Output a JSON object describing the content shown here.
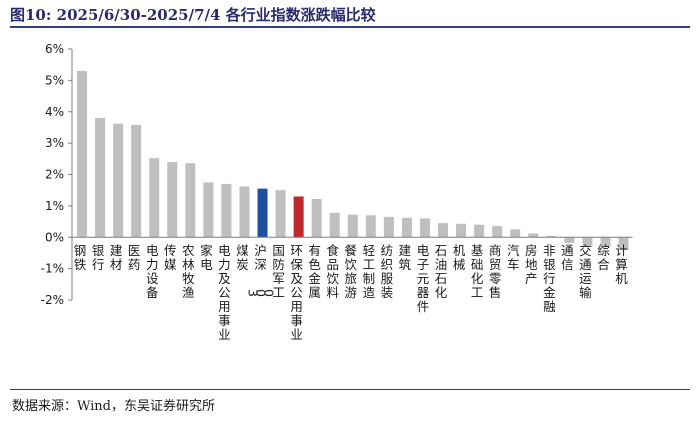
{
  "header": {
    "title": "图10:  2025/6/30-2025/7/4 各行业指数涨跌幅比较"
  },
  "footer": {
    "source": "数据来源：Wind，东吴证券研究所"
  },
  "colors": {
    "default_bar": "#bfbfbf",
    "highlight_blue": "#1f4e9c",
    "highlight_red": "#c0282d",
    "axis": "#7f7f7f"
  },
  "chart_data": {
    "type": "bar",
    "title": "",
    "xlabel": "",
    "ylabel": "",
    "ylim": [
      -0.02,
      0.06
    ],
    "y_ticks": [
      -0.02,
      -0.01,
      0,
      0.01,
      0.02,
      0.03,
      0.04,
      0.05,
      0.06
    ],
    "y_tick_labels": [
      "-2%",
      "-1%",
      "0%",
      "1%",
      "2%",
      "3%",
      "4%",
      "5%",
      "6%"
    ],
    "grid": false,
    "legend": "none",
    "categories": [
      "钢铁",
      "银行",
      "建材",
      "医药",
      "电力设备",
      "传媒",
      "农林牧渔",
      "家电",
      "电力及公用事业",
      "煤炭",
      "沪深300",
      "国防军工",
      "环保及公用事业",
      "有色金属",
      "食品饮料",
      "餐饮旅游",
      "轻工制造",
      "纺织服装",
      "建筑",
      "电子元器件",
      "石油石化",
      "机械",
      "基础化工",
      "商贸零售",
      "汽车",
      "房地产",
      "非银行金融",
      "通信",
      "交通运输",
      "综合",
      "计算机"
    ],
    "values": [
      0.053,
      0.038,
      0.0362,
      0.0358,
      0.0252,
      0.024,
      0.0236,
      0.0175,
      0.017,
      0.0162,
      0.0155,
      0.015,
      0.013,
      0.0122,
      0.0078,
      0.0072,
      0.007,
      0.0065,
      0.0062,
      0.006,
      0.0045,
      0.0043,
      0.004,
      0.0036,
      0.0025,
      0.0012,
      0.0004,
      -0.0018,
      -0.003,
      -0.0032,
      -0.004
    ],
    "highlights": {
      "沪深300": "blue",
      "环保及公用事业": "red"
    }
  }
}
